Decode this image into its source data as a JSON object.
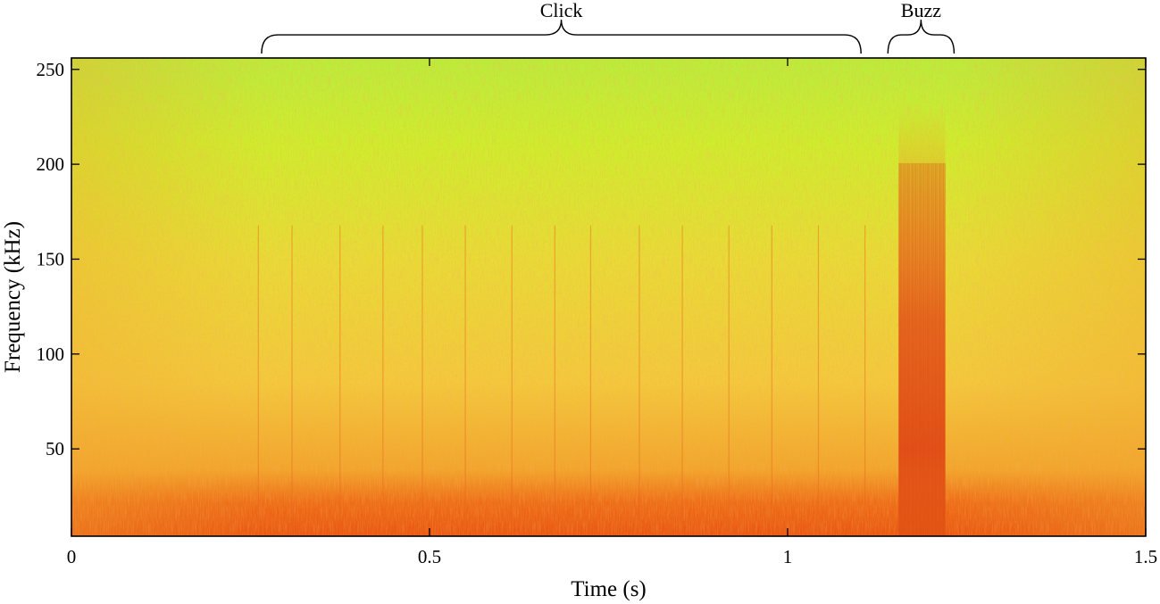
{
  "chart_data": {
    "type": "heatmap",
    "subtype": "spectrogram",
    "xlabel": "Time (s)",
    "ylabel": "Frequency (kHz)",
    "xlim": [
      0,
      1.5
    ],
    "ylim": [
      4,
      256
    ],
    "x_ticks": [
      0,
      0.5,
      1,
      1.5
    ],
    "x_tick_labels": [
      "0",
      "0.5",
      "1",
      "1.5"
    ],
    "y_ticks": [
      50,
      100,
      150,
      200,
      250
    ],
    "y_tick_labels": [
      "50",
      "100",
      "150",
      "200",
      "250"
    ],
    "grid": false,
    "colors": {
      "high_freq_background": "#c6ee2e",
      "mid_background": "#f2c93a",
      "low_freq_band": "#ee6a14",
      "click": "#d9430e",
      "buzz": "#e7561a"
    },
    "click_times_s": [
      0.258,
      0.305,
      0.372,
      0.432,
      0.487,
      0.547,
      0.612,
      0.672,
      0.722,
      0.79,
      0.85,
      0.915,
      0.975,
      1.04,
      1.105
    ],
    "buzz_time_range_s": [
      1.155,
      1.22
    ],
    "annotations": [
      {
        "label": "Click",
        "x_start": 0.258,
        "x_end": 1.105
      },
      {
        "label": "Buzz",
        "x_start": 1.155,
        "x_end": 1.22
      }
    ]
  }
}
